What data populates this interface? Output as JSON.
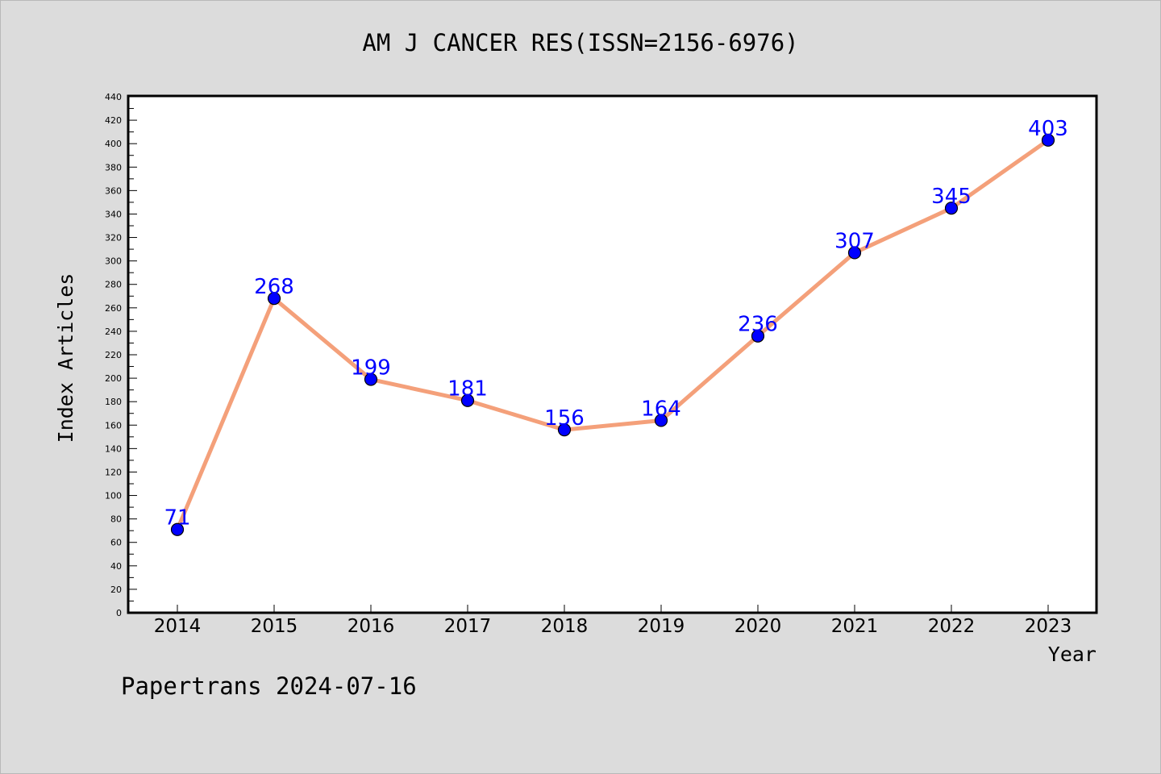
{
  "chart_data": {
    "type": "line",
    "title": "AM J CANCER RES(ISSN=2156-6976)",
    "xlabel": "Year",
    "ylabel": "Index Articles",
    "categories": [
      "2014",
      "2015",
      "2016",
      "2017",
      "2018",
      "2019",
      "2020",
      "2021",
      "2022",
      "2023"
    ],
    "series": [
      {
        "values": [
          71,
          268,
          199,
          181,
          156,
          164,
          236,
          307,
          345,
          403
        ]
      }
    ],
    "ylim": [
      0,
      440
    ],
    "ytick_step": 20,
    "grid": false,
    "legend": "none",
    "colors": {
      "line": "#f4a07a",
      "marker": "#0000ff",
      "label": "#0000ff",
      "background": "#dcdcdc",
      "plot": "#ffffff"
    }
  },
  "footer": "Papertrans 2024-07-16"
}
